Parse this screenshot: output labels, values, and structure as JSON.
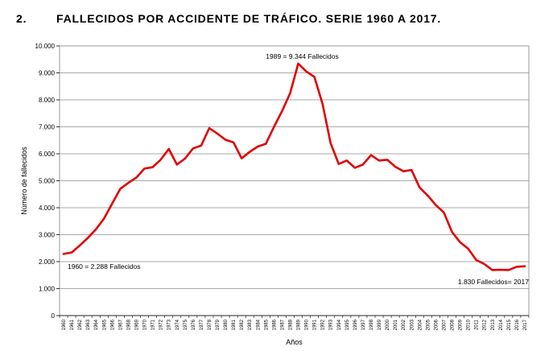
{
  "heading": {
    "number": "2.",
    "title": "FALLECIDOS POR ACCIDENTE DE TRÁFICO. SERIE 1960 A 2017."
  },
  "chart_data": {
    "type": "line",
    "title": "FALLECIDOS POR ACCIDENTE DE TRÁFICO. SERIE 1960 A 2017.",
    "xlabel": "Años",
    "ylabel": "Número de fallecidos",
    "ylim": [
      0,
      10000
    ],
    "yticks": [
      0,
      1000,
      2000,
      3000,
      4000,
      5000,
      6000,
      7000,
      8000,
      9000,
      10000
    ],
    "ytick_labels": [
      "0",
      "1.000",
      "2.000",
      "3.000",
      "4.000",
      "5.000",
      "6.000",
      "7.000",
      "8.000",
      "9.000",
      "10.000"
    ],
    "grid": "horizontal",
    "line_color": "#e00000",
    "x": [
      1960,
      1961,
      1962,
      1963,
      1964,
      1965,
      1966,
      1967,
      1968,
      1969,
      1970,
      1971,
      1972,
      1973,
      1974,
      1975,
      1976,
      1977,
      1978,
      1979,
      1980,
      1981,
      1982,
      1983,
      1984,
      1985,
      1986,
      1987,
      1988,
      1989,
      1990,
      1991,
      1992,
      1993,
      1994,
      1995,
      1996,
      1997,
      1998,
      1999,
      2000,
      2001,
      2002,
      2003,
      2004,
      2005,
      2006,
      2007,
      2008,
      2009,
      2010,
      2011,
      2012,
      2013,
      2014,
      2015,
      2016,
      2017
    ],
    "series": [
      {
        "values": [
          2288,
          2340,
          2600,
          2880,
          3200,
          3600,
          4150,
          4700,
          4920,
          5120,
          5450,
          5500,
          5780,
          6180,
          5600,
          5820,
          6200,
          6300,
          6950,
          6750,
          6520,
          6420,
          5830,
          6070,
          6270,
          6370,
          7000,
          7580,
          8250,
          9344,
          9050,
          8850,
          7850,
          6400,
          5620,
          5750,
          5480,
          5600,
          5950,
          5750,
          5780,
          5520,
          5350,
          5400,
          4750,
          4450,
          4100,
          3820,
          3100,
          2720,
          2480,
          2060,
          1910,
          1690,
          1700,
          1690,
          1810,
          1830
        ]
      }
    ],
    "annotations": [
      {
        "text": "1989 = 9.344 Fallecidos"
      },
      {
        "text": "1960 = 2.288 Fallecidos"
      },
      {
        "text": "1.830 Fallecidos=  2017"
      }
    ]
  }
}
